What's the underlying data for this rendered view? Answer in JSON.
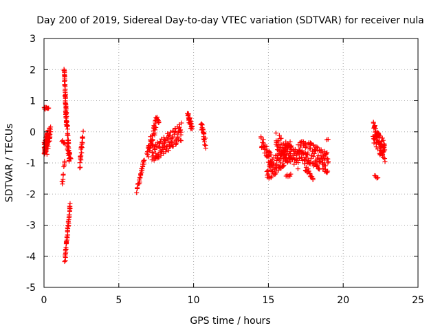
{
  "chart_data": {
    "type": "scatter",
    "title": "Day 200 of 2019, Sidereal Day-to-day VTEC variation (SDTVAR) for receiver nula",
    "xlabel": "GPS time / hours",
    "ylabel": "SDTVAR / TECUs",
    "xlim": [
      0,
      25
    ],
    "ylim": [
      -5,
      3
    ],
    "xticks": [
      0,
      5,
      10,
      15,
      20,
      25
    ],
    "yticks": [
      -5,
      -4,
      -3,
      -2,
      -1,
      0,
      1,
      2,
      3
    ],
    "grid": true,
    "marker": "+",
    "color": "#ff0000",
    "segments": [
      {
        "x0": 0.0,
        "x1": 0.25,
        "y0": -0.6,
        "y1": -0.2,
        "n": 60,
        "jitter": 0.25
      },
      {
        "x0": 0.2,
        "x1": 0.45,
        "y0": -0.5,
        "y1": 0.1,
        "n": 25,
        "jitter": 0.25
      },
      {
        "x0": 0.0,
        "x1": 0.3,
        "y0": 0.75,
        "y1": 0.75,
        "n": 10,
        "jitter": 0.04
      },
      {
        "x0": 1.35,
        "x1": 1.5,
        "y0": 2.05,
        "y1": 0.2,
        "n": 50,
        "jitter": 0.05
      },
      {
        "x0": 1.45,
        "x1": 1.7,
        "y0": 0.8,
        "y1": -0.9,
        "n": 40,
        "jitter": 0.1
      },
      {
        "x0": 1.55,
        "x1": 1.8,
        "y0": -0.5,
        "y1": -0.85,
        "n": 12,
        "jitter": 0.1
      },
      {
        "x0": 1.4,
        "x1": 1.75,
        "y0": -4.1,
        "y1": -2.3,
        "n": 50,
        "jitter": 0.08
      },
      {
        "x0": 1.2,
        "x1": 1.4,
        "y0": -1.65,
        "y1": -1.0,
        "n": 10,
        "jitter": 0.1
      },
      {
        "x0": 1.2,
        "x1": 1.4,
        "y0": -0.3,
        "y1": -0.35,
        "n": 6,
        "jitter": 0.05
      },
      {
        "x0": 2.4,
        "x1": 2.6,
        "y0": -1.1,
        "y1": -0.05,
        "n": 25,
        "jitter": 0.15
      },
      {
        "x0": 6.2,
        "x1": 6.7,
        "y0": -1.9,
        "y1": -0.9,
        "n": 30,
        "jitter": 0.08
      },
      {
        "x0": 6.9,
        "x1": 7.5,
        "y0": -0.7,
        "y1": 0.3,
        "n": 40,
        "jitter": 0.2
      },
      {
        "x0": 7.5,
        "x1": 7.7,
        "y0": 0.5,
        "y1": 0.3,
        "n": 8,
        "jitter": 0.08
      },
      {
        "x0": 7.2,
        "x1": 9.2,
        "y0": -0.7,
        "y1": 0.0,
        "n": 110,
        "jitter": 0.3
      },
      {
        "x0": 9.6,
        "x1": 9.9,
        "y0": 0.55,
        "y1": 0.1,
        "n": 30,
        "jitter": 0.15
      },
      {
        "x0": 10.5,
        "x1": 10.8,
        "y0": 0.3,
        "y1": -0.4,
        "n": 25,
        "jitter": 0.15
      },
      {
        "x0": 14.5,
        "x1": 15.2,
        "y0": -0.3,
        "y1": -0.9,
        "n": 35,
        "jitter": 0.2
      },
      {
        "x0": 14.9,
        "x1": 16.5,
        "y0": -1.3,
        "y1": -0.6,
        "n": 90,
        "jitter": 0.3
      },
      {
        "x0": 15.5,
        "x1": 17.0,
        "y0": -0.3,
        "y1": -0.9,
        "n": 80,
        "jitter": 0.3
      },
      {
        "x0": 16.2,
        "x1": 16.5,
        "y0": -1.4,
        "y1": -1.4,
        "n": 6,
        "jitter": 0.05
      },
      {
        "x0": 17.0,
        "x1": 19.0,
        "y0": -0.5,
        "y1": -1.0,
        "n": 130,
        "jitter": 0.35
      },
      {
        "x0": 17.4,
        "x1": 18.0,
        "y0": -1.1,
        "y1": -1.5,
        "n": 20,
        "jitter": 0.1
      },
      {
        "x0": 18.9,
        "x1": 19.0,
        "y0": -0.25,
        "y1": -0.25,
        "n": 2,
        "jitter": 0.02
      },
      {
        "x0": 22.0,
        "x1": 22.8,
        "y0": 0.0,
        "y1": -0.7,
        "n": 80,
        "jitter": 0.35
      },
      {
        "x0": 22.1,
        "x1": 22.3,
        "y0": -1.4,
        "y1": -1.5,
        "n": 5,
        "jitter": 0.06
      }
    ]
  }
}
